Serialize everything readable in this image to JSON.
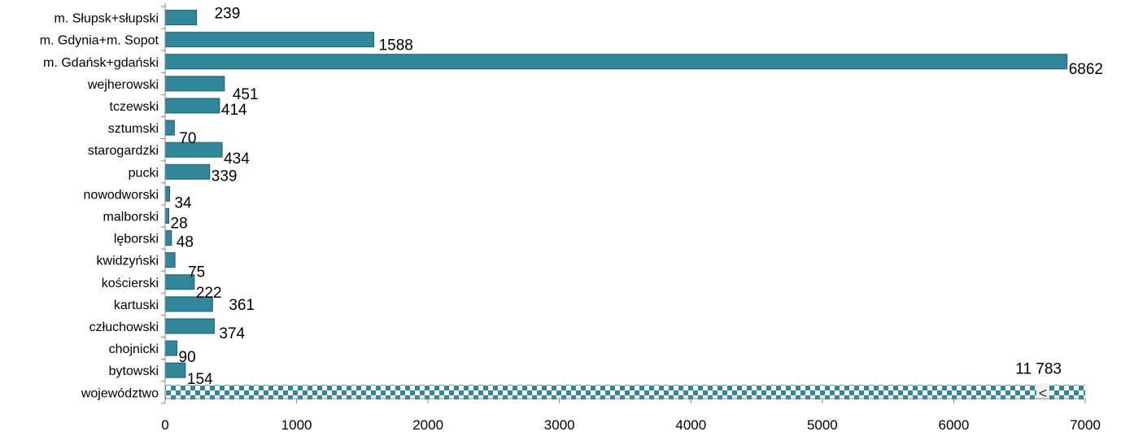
{
  "chart_data": {
    "type": "bar",
    "orientation": "horizontal",
    "categories": [
      "m. Słupsk+słupski",
      "m. Gdynia+m. Sopot",
      "m. Gdańsk+gdański",
      "wejherowski",
      "tczewski",
      "sztumski",
      "starogardzki",
      "pucki",
      "nowodworski",
      "malborski",
      "lęborski",
      "kwidzyński",
      "kościerski",
      "kartuski",
      "człuchowski",
      "chojnicki",
      "bytowski",
      "województwo"
    ],
    "values": [
      239,
      1588,
      6862,
      451,
      414,
      70,
      434,
      339,
      34,
      28,
      48,
      75,
      222,
      361,
      374,
      90,
      154,
      11783
    ],
    "value_labels": [
      "239",
      "1588",
      "6862",
      "451",
      "414",
      "70",
      "434",
      "339",
      "34",
      "28",
      "48",
      "75",
      "222",
      "361",
      "374",
      "90",
      "154",
      "11 783"
    ],
    "axis_break_category": "województwo",
    "axis_break_marker": "<",
    "xlim": [
      0,
      7000
    ],
    "xticks": [
      "0",
      "1000",
      "2000",
      "3000",
      "4000",
      "5000",
      "6000",
      "7000"
    ],
    "grid": false,
    "colors": {
      "bar_fill": "#31869b",
      "bar_edge": "#1f5f6e",
      "checker_dark": "#31869b",
      "checker_light": "#ffffff",
      "axis": "#868686"
    }
  }
}
